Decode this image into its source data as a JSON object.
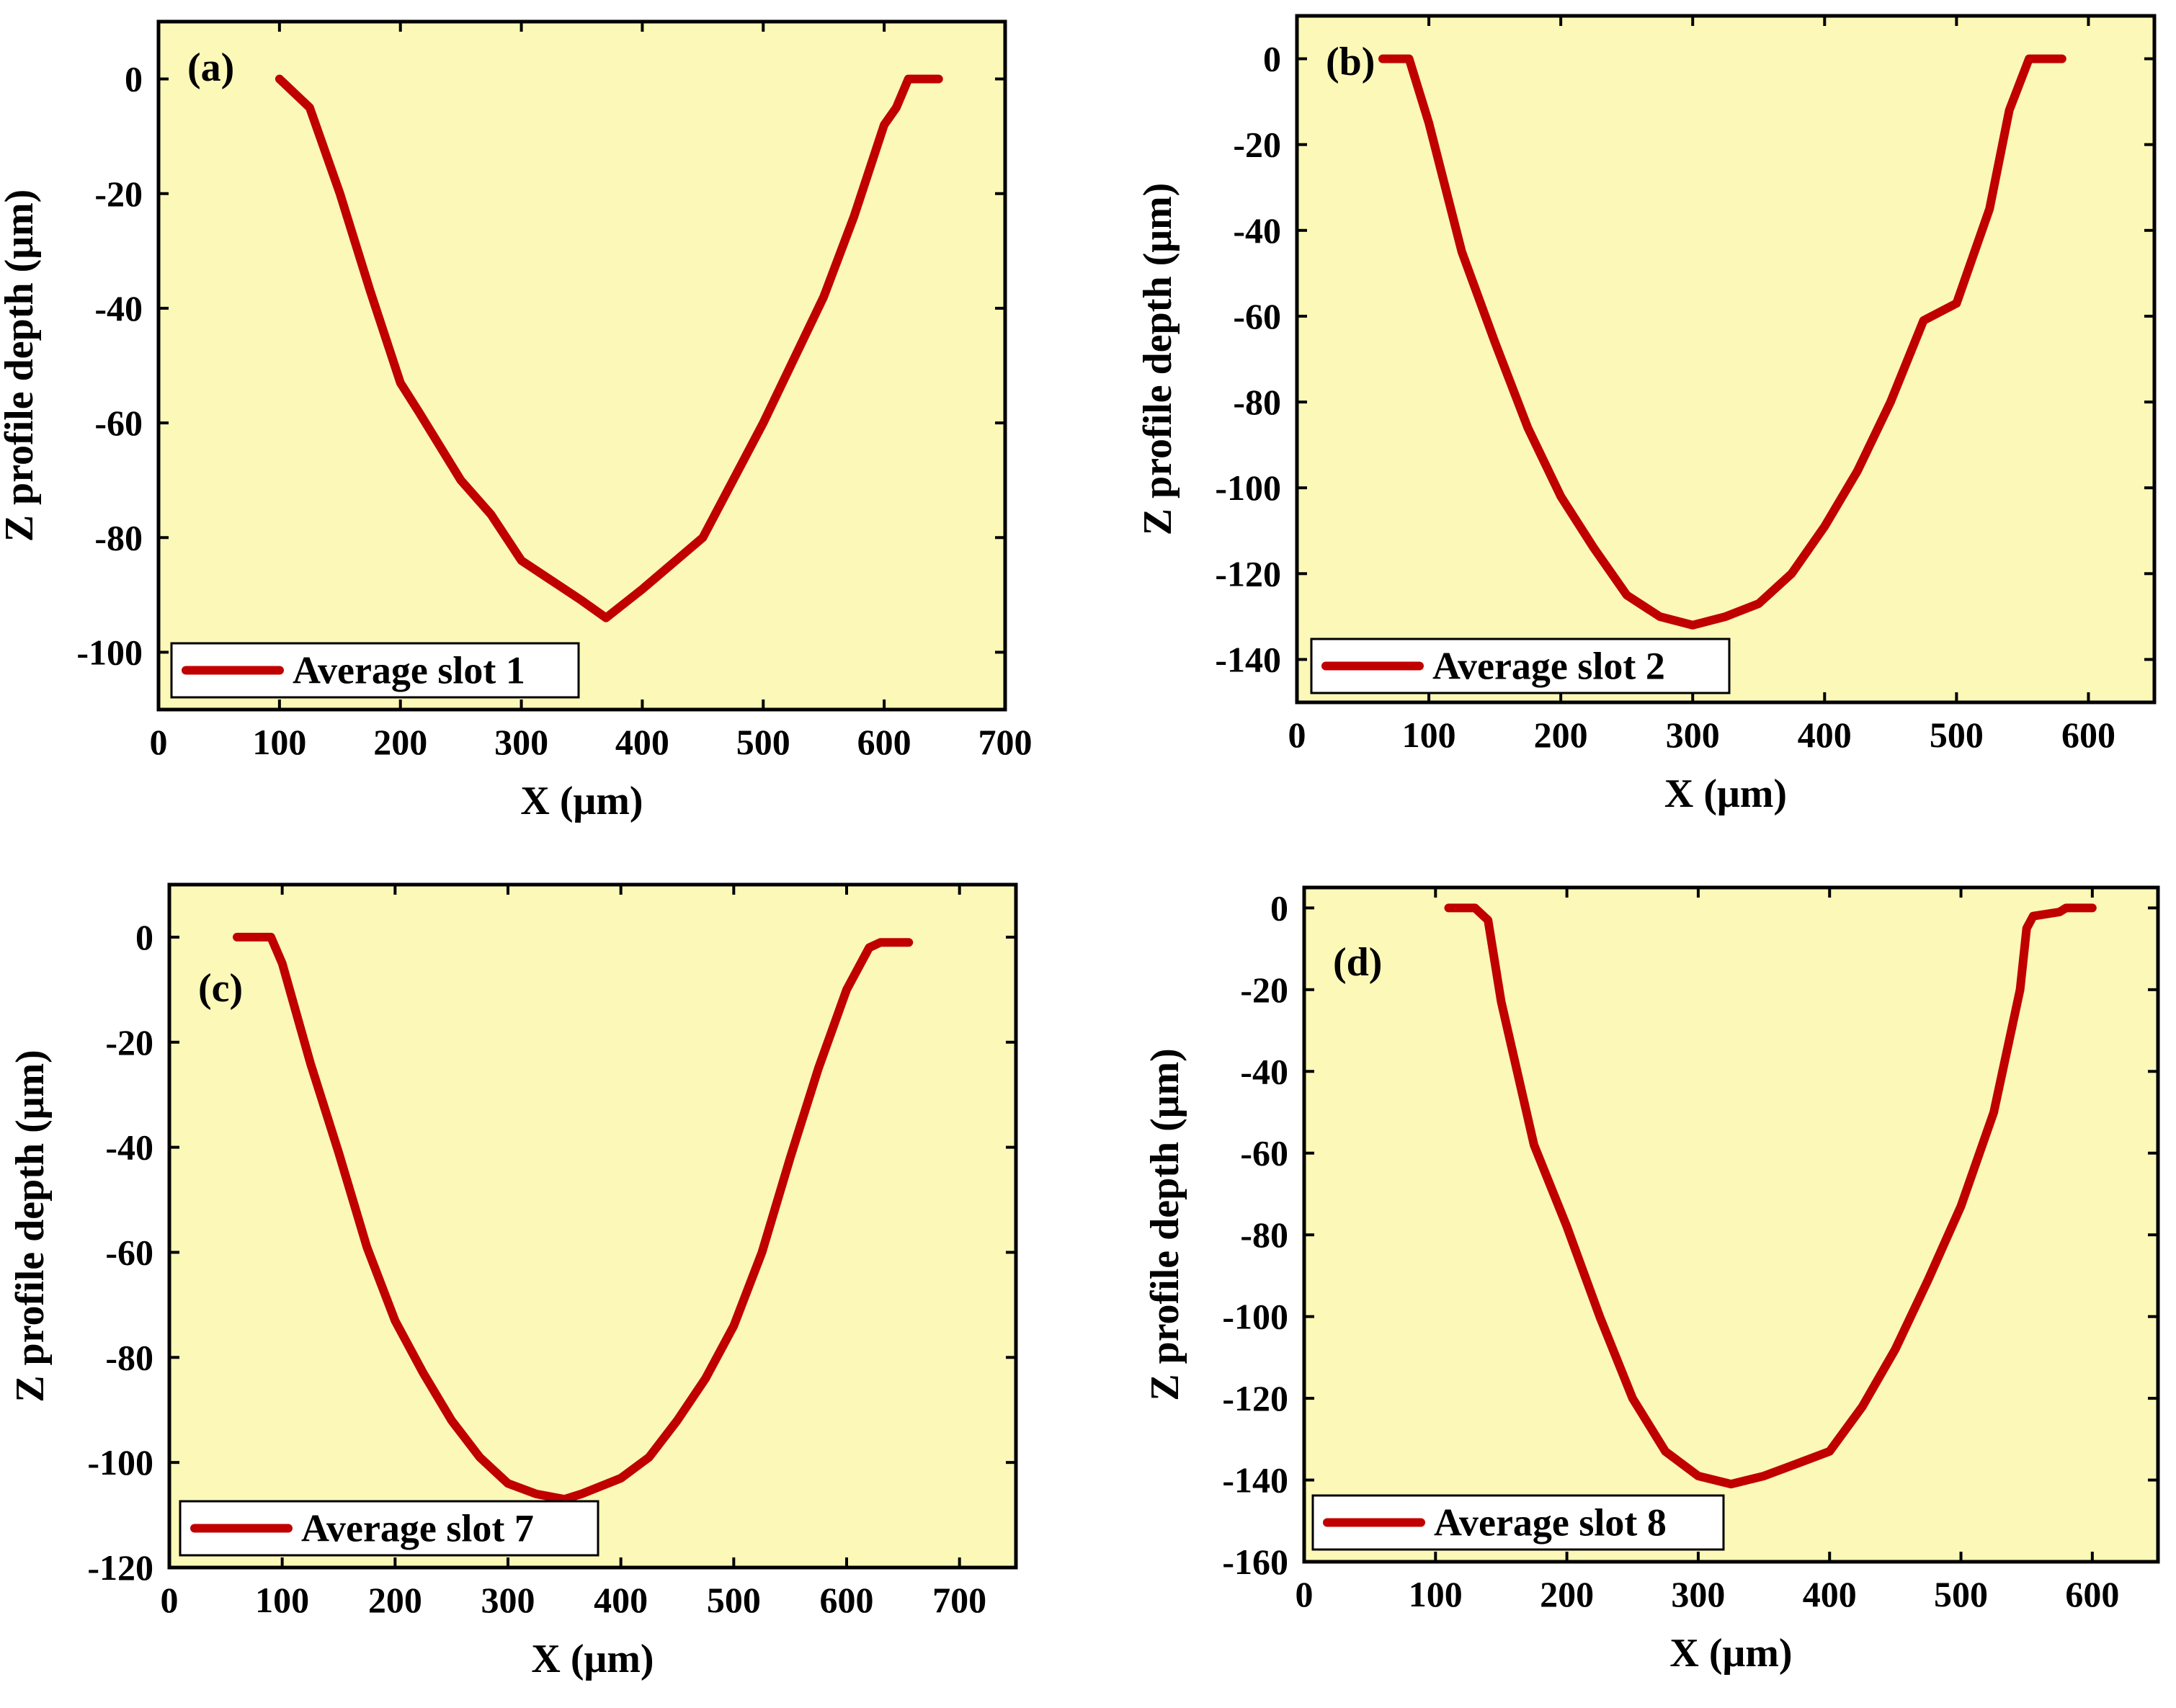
{
  "figure": {
    "colors": {
      "plot_background": "#fbf8b8",
      "line": "#c00000",
      "axes": "#000000",
      "page_background": "#ffffff"
    }
  },
  "chart_data": [
    {
      "type": "line",
      "panel_label": "(a)",
      "xlabel": "X (μm)",
      "ylabel": "Z profile depth (μm)",
      "xlim": [
        0,
        700
      ],
      "ylim": [
        -110,
        10
      ],
      "xticks": [
        0,
        100,
        200,
        300,
        400,
        500,
        600,
        700
      ],
      "xtick_labels": [
        "0",
        "100",
        "200",
        "300",
        "400",
        "500",
        "600",
        "700"
      ],
      "yticks": [
        0,
        -20,
        -40,
        -60,
        -80,
        -100
      ],
      "ytick_labels": [
        "0",
        "-20",
        "-40",
        "-60",
        "-80",
        "-100"
      ],
      "legend_location": "bottom-left",
      "series": [
        {
          "name": "Average slot 1",
          "x": [
            100,
            125,
            150,
            175,
            200,
            215,
            250,
            275,
            300,
            350,
            370,
            400,
            450,
            500,
            550,
            575,
            600,
            610,
            620,
            645
          ],
          "y": [
            0,
            -5,
            -20,
            -37,
            -53,
            -58,
            -70,
            -76,
            -84,
            -91,
            -94,
            -89,
            -80,
            -60,
            -38,
            -24,
            -8,
            -5,
            0,
            0
          ]
        }
      ]
    },
    {
      "type": "line",
      "panel_label": "(b)",
      "xlabel": "X (μm)",
      "ylabel": "Z profile depth (μm)",
      "xlim": [
        0,
        650
      ],
      "ylim": [
        -150,
        10
      ],
      "xticks": [
        0,
        100,
        200,
        300,
        400,
        500,
        600
      ],
      "xtick_labels": [
        "0",
        "100",
        "200",
        "300",
        "400",
        "500",
        "600"
      ],
      "yticks": [
        0,
        -20,
        -40,
        -60,
        -80,
        -100,
        -120,
        -140
      ],
      "ytick_labels": [
        "0",
        "-20",
        "-40",
        "-60",
        "-80",
        "-100",
        "-120",
        "-140"
      ],
      "legend_location": "bottom-left",
      "series": [
        {
          "name": "Average slot 2",
          "x": [
            65,
            85,
            100,
            125,
            150,
            175,
            200,
            225,
            250,
            275,
            300,
            325,
            350,
            375,
            400,
            425,
            450,
            475,
            500,
            525,
            540,
            555,
            580
          ],
          "y": [
            0,
            0,
            -15,
            -45,
            -66,
            -86,
            -102,
            -114,
            -125,
            -130,
            -132,
            -130,
            -127,
            -120,
            -109,
            -96,
            -80,
            -61,
            -57,
            -35,
            -12,
            0,
            0
          ]
        }
      ]
    },
    {
      "type": "line",
      "panel_label": "(c)",
      "xlabel": "X (μm)",
      "ylabel": "Z profile depth (μm)",
      "xlim": [
        0,
        750
      ],
      "ylim": [
        -120,
        10
      ],
      "xticks": [
        0,
        100,
        200,
        300,
        400,
        500,
        600,
        700
      ],
      "xtick_labels": [
        "0",
        "100",
        "200",
        "300",
        "400",
        "500",
        "600",
        "700"
      ],
      "yticks": [
        0,
        -20,
        -40,
        -60,
        -80,
        -100,
        -120
      ],
      "ytick_labels": [
        "0",
        "-20",
        "-40",
        "-60",
        "-80",
        "-100",
        "-120"
      ],
      "legend_location": "bottom-left",
      "series": [
        {
          "name": "Average slot 7",
          "x": [
            60,
            90,
            100,
            125,
            150,
            175,
            200,
            225,
            250,
            275,
            300,
            325,
            350,
            365,
            400,
            425,
            450,
            475,
            500,
            525,
            550,
            575,
            600,
            620,
            630,
            655
          ],
          "y": [
            0,
            0,
            -5,
            -24,
            -41,
            -59,
            -73,
            -83,
            -92,
            -99,
            -104,
            -106,
            -107,
            -106,
            -103,
            -99,
            -92,
            -84,
            -74,
            -60,
            -42,
            -25,
            -10,
            -2,
            -1,
            -1
          ]
        }
      ]
    },
    {
      "type": "line",
      "panel_label": "(d)",
      "xlabel": "X (μm)",
      "ylabel": "Z profile depth (μm)",
      "xlim": [
        0,
        650
      ],
      "ylim": [
        -160,
        5
      ],
      "xticks": [
        0,
        100,
        200,
        300,
        400,
        500,
        600
      ],
      "xtick_labels": [
        "0",
        "100",
        "200",
        "300",
        "400",
        "500",
        "600"
      ],
      "yticks": [
        0,
        -20,
        -40,
        -60,
        -80,
        -100,
        -120,
        -140,
        -160
      ],
      "ytick_labels": [
        "0",
        "-20",
        "-40",
        "-60",
        "-80",
        "-100",
        "-120",
        "-140",
        "-160"
      ],
      "legend_location": "bottom-left",
      "series": [
        {
          "name": "Average slot 8",
          "x": [
            110,
            130,
            140,
            150,
            175,
            200,
            225,
            250,
            275,
            300,
            325,
            350,
            375,
            400,
            425,
            450,
            475,
            500,
            525,
            545,
            550,
            555,
            575,
            580,
            600
          ],
          "y": [
            0,
            0,
            -3,
            -23,
            -58,
            -78,
            -100,
            -120,
            -133,
            -139,
            -141,
            -139,
            -136,
            -133,
            -122,
            -108,
            -91,
            -73,
            -50,
            -20,
            -5,
            -2,
            -1,
            0,
            0
          ]
        }
      ]
    }
  ]
}
